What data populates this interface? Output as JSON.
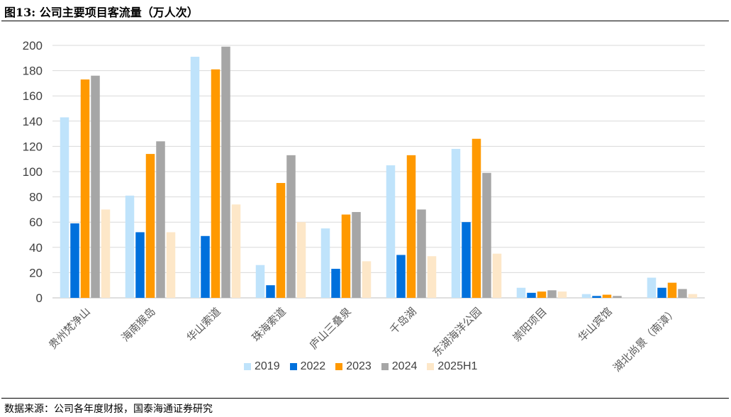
{
  "title": "图13:  公司主要项目客流量（万人次）",
  "source": "数据来源：公司各年度财报，国泰海通证券研究",
  "chart_data": {
    "type": "bar",
    "title": "公司主要项目客流量（万人次）",
    "categories": [
      "贵州梵净山",
      "海南猴岛",
      "华山索道",
      "珠海索道",
      "庐山三叠泉",
      "千岛湖",
      "东湖海洋公园",
      "崇阳项目",
      "华山宾馆",
      "湖北尚景（南漳）"
    ],
    "series": [
      {
        "name": "2019",
        "color": "#bfe3fb",
        "values": [
          143,
          81,
          191,
          26,
          55,
          105,
          118,
          8,
          3,
          16
        ]
      },
      {
        "name": "2022",
        "color": "#0070dc",
        "values": [
          59,
          52,
          49,
          10,
          23,
          34,
          60,
          4,
          1.5,
          8
        ]
      },
      {
        "name": "2023",
        "color": "#ff9900",
        "values": [
          173,
          114,
          181,
          91,
          66,
          113,
          126,
          5,
          2.5,
          12
        ]
      },
      {
        "name": "2024",
        "color": "#a6a6a6",
        "values": [
          176,
          124,
          199,
          113,
          68,
          70,
          99,
          6,
          1.5,
          7
        ]
      },
      {
        "name": "2025H1",
        "color": "#fde7c8",
        "values": [
          70,
          52,
          74,
          60,
          29,
          33,
          35,
          5,
          0,
          3
        ]
      }
    ],
    "ylim": [
      0,
      200
    ],
    "yticks": [
      0,
      20,
      40,
      60,
      80,
      100,
      120,
      140,
      160,
      180,
      200
    ],
    "grid": true,
    "legend": "bottom"
  }
}
